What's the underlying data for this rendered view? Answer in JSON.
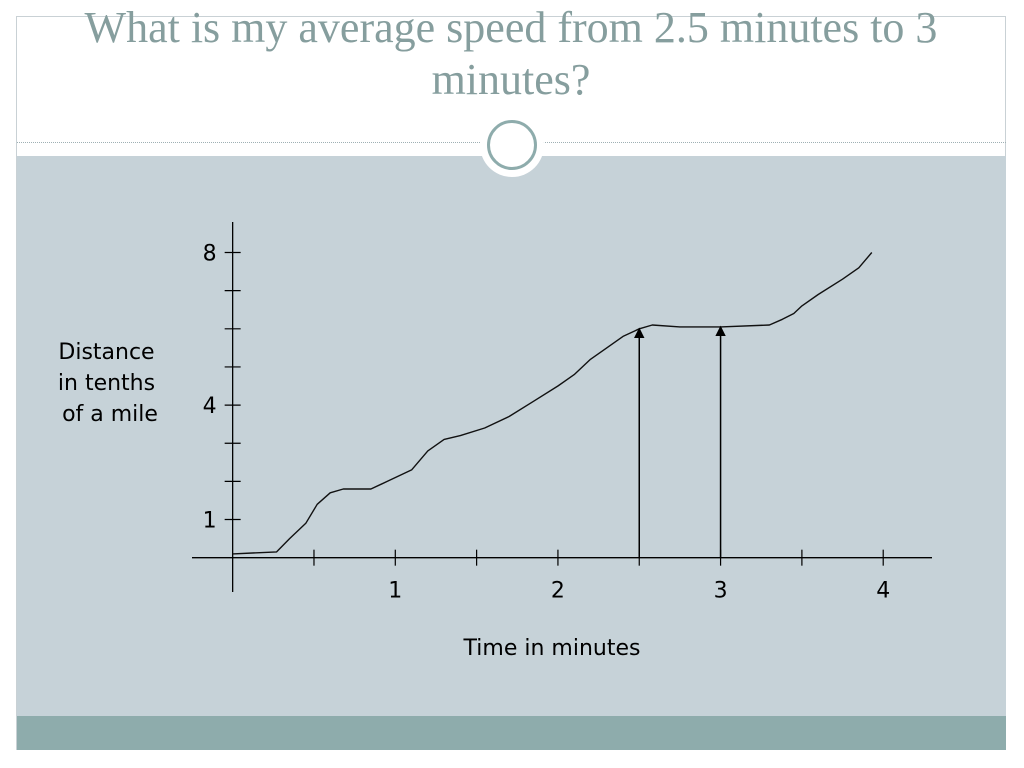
{
  "slide": {
    "title": "What is my average speed from 2.5 minutes to 3 minutes?"
  },
  "colors": {
    "title": "#869e9e",
    "panel": "#c6d2d8",
    "footer": "#8eacac",
    "ornament_ring": "#8eacac"
  },
  "chart_data": {
    "type": "line",
    "xlabel": "Time in minutes",
    "ylabel_lines": [
      "Distance",
      "in tenths",
      "of a mile"
    ],
    "xlim": [
      -0.25,
      4.3
    ],
    "ylim": [
      -0.9,
      8.8
    ],
    "x_ticks": [
      0.5,
      1,
      1.5,
      2,
      2.5,
      3,
      3.5,
      4
    ],
    "x_tick_labels": [
      {
        "value": 1,
        "label": "1"
      },
      {
        "value": 2,
        "label": "2"
      },
      {
        "value": 3,
        "label": "3"
      },
      {
        "value": 4,
        "label": "4"
      }
    ],
    "y_ticks": [
      1,
      2,
      3,
      4,
      5,
      6,
      7,
      8
    ],
    "y_tick_labels": [
      {
        "value": 1,
        "label": "1"
      },
      {
        "value": 4,
        "label": "4"
      },
      {
        "value": 8,
        "label": "8"
      }
    ],
    "series": [
      {
        "x": [
          0,
          0.27,
          0.35,
          0.45,
          0.52,
          0.6,
          0.68,
          0.85,
          0.95,
          1.1,
          1.2,
          1.3,
          1.4,
          1.55,
          1.7,
          1.85,
          2.0,
          2.1,
          2.2,
          2.3,
          2.4,
          2.5,
          2.58,
          2.75,
          3.0,
          3.3,
          3.38,
          3.45,
          3.5,
          3.6,
          3.75,
          3.85,
          3.93
        ],
        "y": [
          0.1,
          0.15,
          0.5,
          0.9,
          1.4,
          1.7,
          1.8,
          1.8,
          2.0,
          2.3,
          2.8,
          3.1,
          3.2,
          3.4,
          3.7,
          4.1,
          4.5,
          4.8,
          5.2,
          5.5,
          5.8,
          6.0,
          6.1,
          6.05,
          6.05,
          6.1,
          6.25,
          6.4,
          6.6,
          6.9,
          7.3,
          7.6,
          8.0
        ]
      }
    ],
    "annotations": [
      {
        "type": "arrow",
        "x": 2.5,
        "from_y": 0,
        "to_y": 6.0
      },
      {
        "type": "arrow",
        "x": 3.0,
        "from_y": 0,
        "to_y": 6.05
      }
    ]
  }
}
